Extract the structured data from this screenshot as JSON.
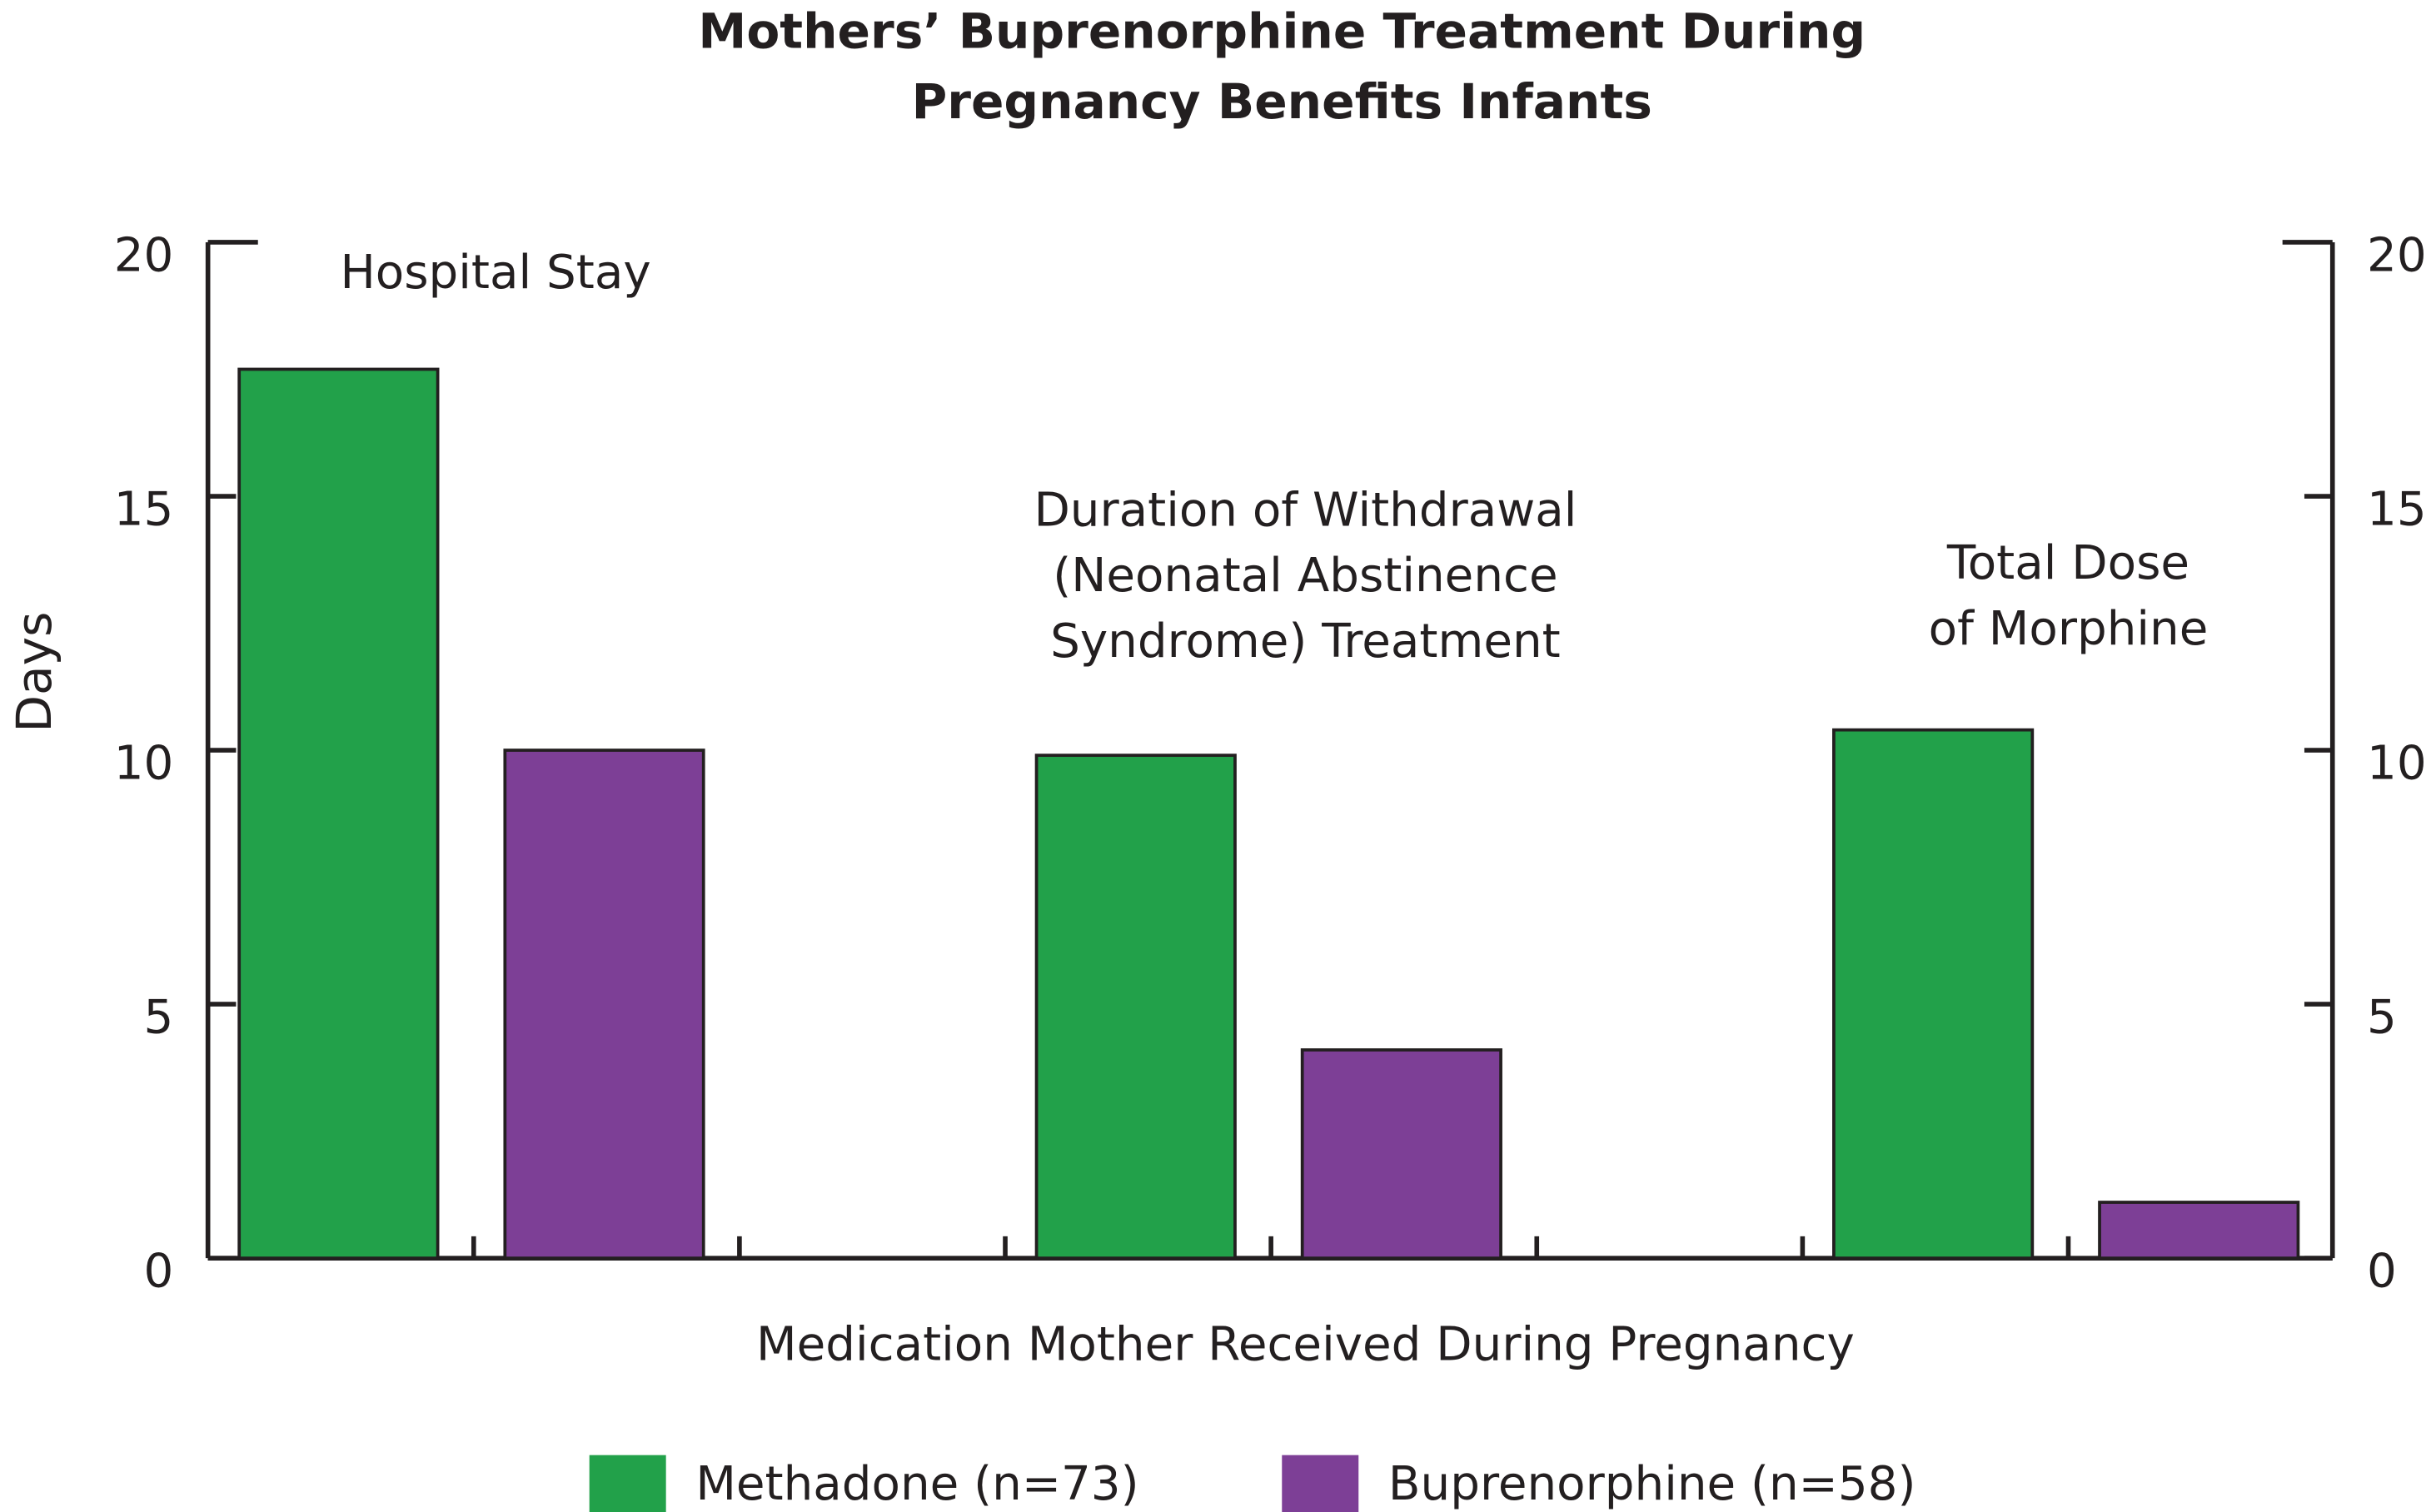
{
  "chart_data": {
    "type": "bar",
    "title": [
      "Mothers’ Buprenorphine Treatment During",
      "Pregnancy Benefits Infants"
    ],
    "categories": [
      [
        "Hospital Stay"
      ],
      [
        "Duration of Withdrawal",
        "(Neonatal Abstinence",
        "Syndrome) Treatment"
      ],
      [
        "Total Dose",
        "of Morphine"
      ]
    ],
    "series": [
      {
        "name": "Methadone (n=73)",
        "color": "#22a14a",
        "values": [
          17.5,
          9.9,
          10.4
        ]
      },
      {
        "name": "Buprenorphine (n=58)",
        "color": "#7d3f96",
        "values": [
          10.0,
          4.1,
          1.1
        ]
      }
    ],
    "ylabel": "Days",
    "xlabel": "Medication Mother Received During Pregnancy",
    "ylim": [
      0,
      20
    ],
    "yticks": [
      0,
      5,
      10,
      15,
      20
    ],
    "y2lim": [
      0,
      20
    ],
    "y2ticks": [
      0,
      5,
      10,
      15,
      20
    ],
    "grid": false,
    "legend": "bottom"
  }
}
